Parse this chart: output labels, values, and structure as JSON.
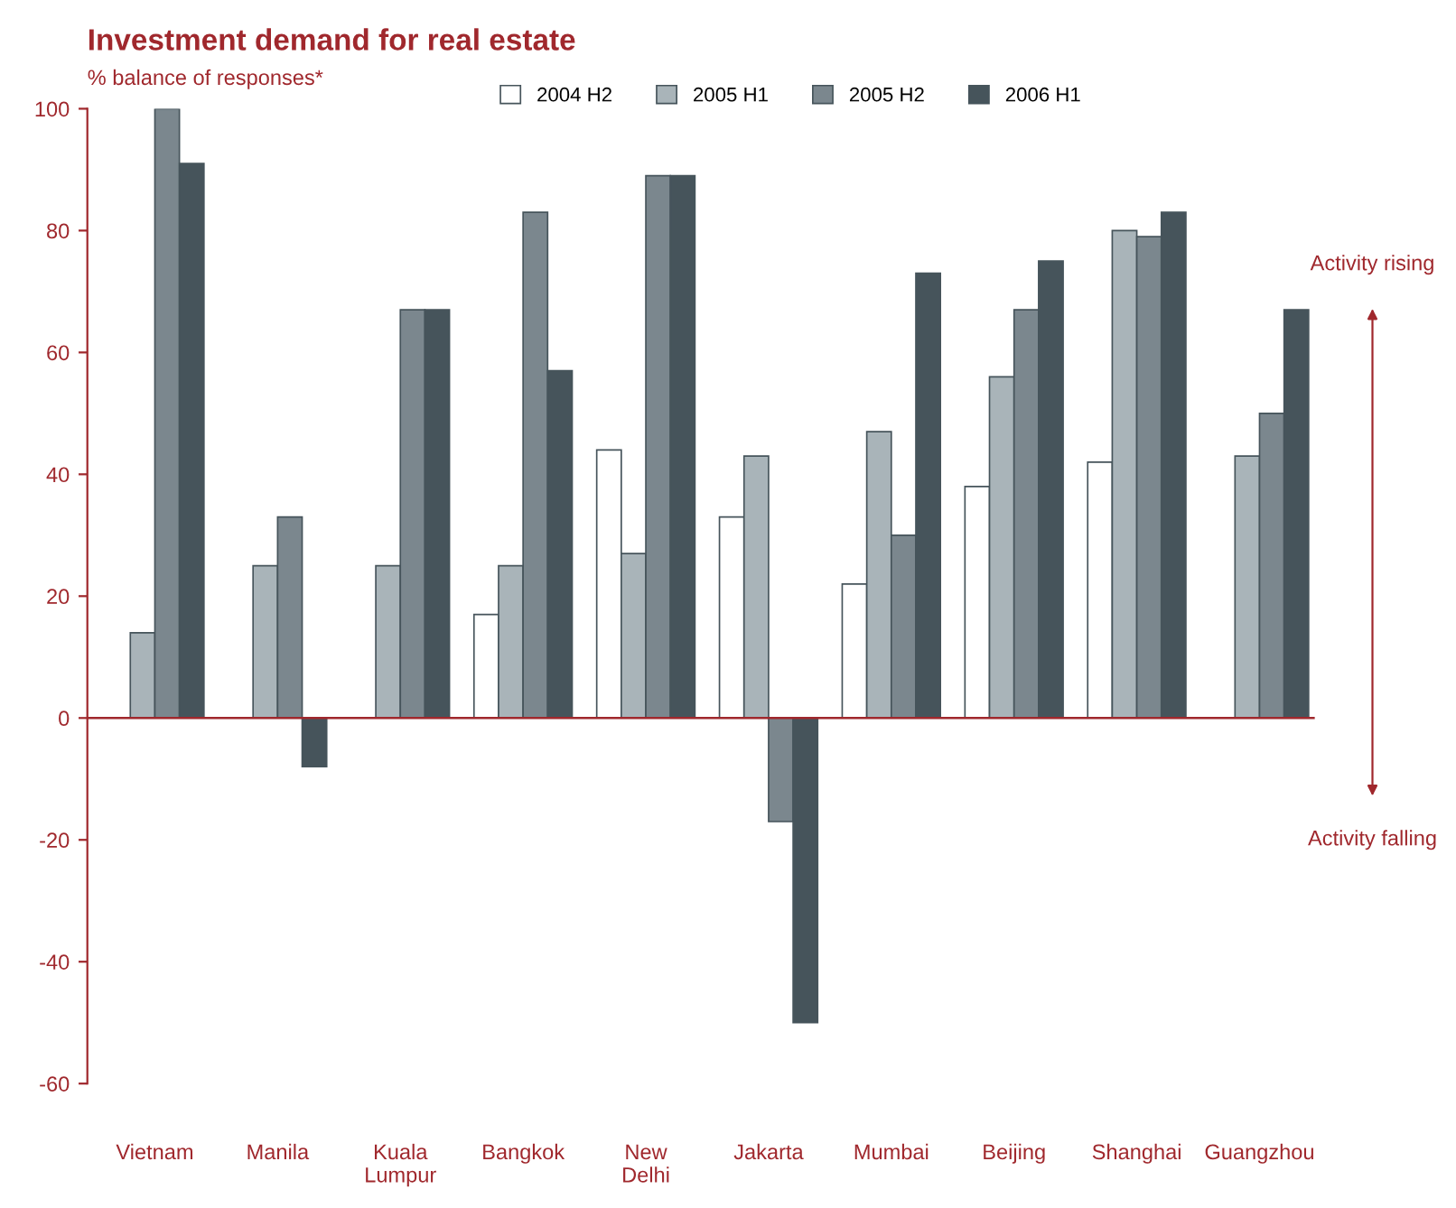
{
  "chart_data": {
    "type": "bar",
    "title": "Investment demand for real estate",
    "ylabel": "% balance of responses*",
    "categories": [
      "Vietnam",
      "Manila",
      "Kuala\nLumpur",
      "Bangkok",
      "New\nDelhi",
      "Jakarta",
      "Mumbai",
      "Beijing",
      "Shanghai",
      "Guangzhou"
    ],
    "series": [
      {
        "name": "2004 H2",
        "color": "#ffffff",
        "values": [
          null,
          null,
          null,
          17,
          44,
          33,
          22,
          38,
          42,
          null
        ]
      },
      {
        "name": "2005 H1",
        "color": "#a9b4b9",
        "values": [
          14,
          25,
          25,
          25,
          27,
          43,
          47,
          56,
          80,
          43
        ]
      },
      {
        "name": "2005 H2",
        "color": "#7b878e",
        "values": [
          100,
          33,
          67,
          83,
          89,
          -17,
          30,
          67,
          79,
          50
        ]
      },
      {
        "name": "2006 H1",
        "color": "#46545b",
        "values": [
          91,
          -8,
          67,
          57,
          89,
          -50,
          73,
          75,
          83,
          67
        ]
      }
    ],
    "ylim": [
      -60,
      100
    ],
    "yticks": [
      -60,
      -40,
      -20,
      0,
      20,
      40,
      60,
      80,
      100
    ],
    "annotations": [
      "Activity rising",
      "Activity falling"
    ],
    "ref_lines": [
      {
        "axis": "y",
        "value": 0,
        "color": "#a0282d"
      }
    ],
    "legend": "top",
    "grid": false
  }
}
